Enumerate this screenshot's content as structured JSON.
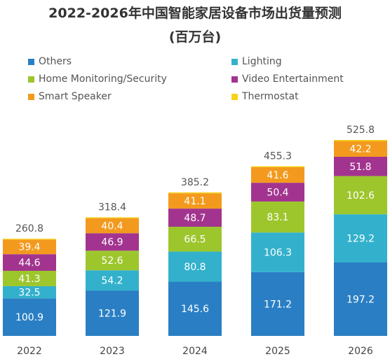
{
  "chart_data": {
    "type": "bar",
    "stacked": true,
    "title": "2022-2026年中国智能家居设备市场出货量预测",
    "subtitle": "(百万台)",
    "categories": [
      "2022",
      "2023",
      "2024",
      "2025",
      "2026"
    ],
    "totals": [
      "260.8",
      "318.4",
      "385.2",
      "455.3",
      "525.8"
    ],
    "series": [
      {
        "name": "Others",
        "color": "#2a7fc4",
        "values": [
          100.9,
          121.9,
          145.6,
          171.2,
          197.2
        ]
      },
      {
        "name": "Lighting",
        "color": "#33b1cc",
        "values": [
          32.5,
          54.2,
          80.8,
          106.3,
          129.2
        ]
      },
      {
        "name": "Home Monitoring/Security",
        "color": "#9dc62d",
        "values": [
          41.3,
          52.6,
          66.5,
          83.1,
          102.6
        ]
      },
      {
        "name": "Video Entertainment",
        "color": "#a2348f",
        "values": [
          44.6,
          46.9,
          48.7,
          50.4,
          51.8
        ]
      },
      {
        "name": "Smart Speaker",
        "color": "#f39a1e",
        "values": [
          39.4,
          40.4,
          41.1,
          41.6,
          42.2
        ]
      },
      {
        "name": "Thermostat",
        "color": "#f7d21a",
        "values": [
          2.1,
          2.4,
          2.5,
          2.7,
          2.8
        ]
      }
    ],
    "hidden_labels": [
      "Thermostat"
    ],
    "legend_position": "top",
    "grid": false
  }
}
